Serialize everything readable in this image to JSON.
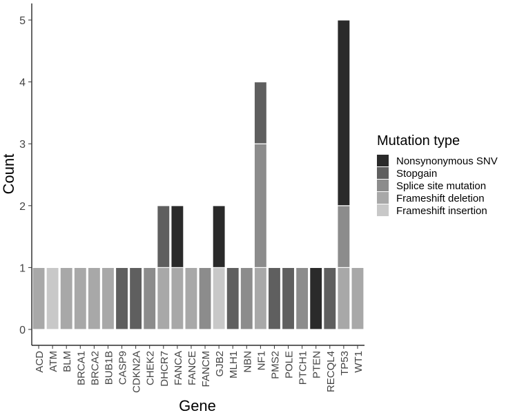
{
  "chart_data": {
    "type": "bar",
    "stacked": true,
    "xlabel": "Gene",
    "ylabel": "Count",
    "ylim": [
      0,
      5.3
    ],
    "yticks": [
      0,
      1,
      2,
      3,
      4,
      5
    ],
    "grid": false,
    "legend_position": "right",
    "legend_title": "Mutation type",
    "categories": [
      "ACD",
      "ATM",
      "BLM",
      "BRCA1",
      "BRCA2",
      "BUB1B",
      "CASP9",
      "CDKN2A",
      "CHEK2",
      "DHCR7",
      "FANCA",
      "FANCE",
      "FANCM",
      "GJB2",
      "MLH1",
      "NBN",
      "NF1",
      "PMS2",
      "POLE",
      "PTCH1",
      "PTEN",
      "RECQL4",
      "TP53",
      "WT1"
    ],
    "series": [
      {
        "name": "Frameshift insertion",
        "color": "#c8c8c8",
        "values": [
          0,
          1,
          0,
          0,
          0,
          0,
          0,
          0,
          0,
          0,
          0,
          0,
          0,
          1,
          0,
          0,
          0,
          0,
          0,
          0,
          0,
          0,
          0,
          0
        ]
      },
      {
        "name": "Frameshift deletion",
        "color": "#a8a8a8",
        "values": [
          1,
          0,
          1,
          1,
          1,
          1,
          0,
          0,
          0,
          1,
          1,
          1,
          0,
          0,
          0,
          0,
          1,
          0,
          0,
          0,
          0,
          0,
          1,
          1
        ]
      },
      {
        "name": "Splice site mutation",
        "color": "#8c8c8c",
        "values": [
          0,
          0,
          0,
          0,
          0,
          0,
          0,
          0,
          1,
          0,
          0,
          0,
          1,
          0,
          0,
          1,
          2,
          0,
          0,
          1,
          0,
          0,
          1,
          0
        ]
      },
      {
        "name": "Stopgain",
        "color": "#5f5f5f",
        "values": [
          0,
          0,
          0,
          0,
          0,
          0,
          1,
          1,
          0,
          1,
          0,
          0,
          0,
          0,
          1,
          0,
          1,
          1,
          1,
          0,
          0,
          1,
          0,
          0
        ]
      },
      {
        "name": "Nonsynonymous SNV",
        "color": "#2a2a2a",
        "values": [
          0,
          0,
          0,
          0,
          0,
          0,
          0,
          0,
          0,
          0,
          1,
          0,
          0,
          1,
          0,
          0,
          0,
          0,
          0,
          0,
          1,
          0,
          3,
          0
        ]
      }
    ],
    "legend_order": [
      "Nonsynonymous SNV",
      "Stopgain",
      "Splice site mutation",
      "Frameshift deletion",
      "Frameshift insertion"
    ]
  }
}
